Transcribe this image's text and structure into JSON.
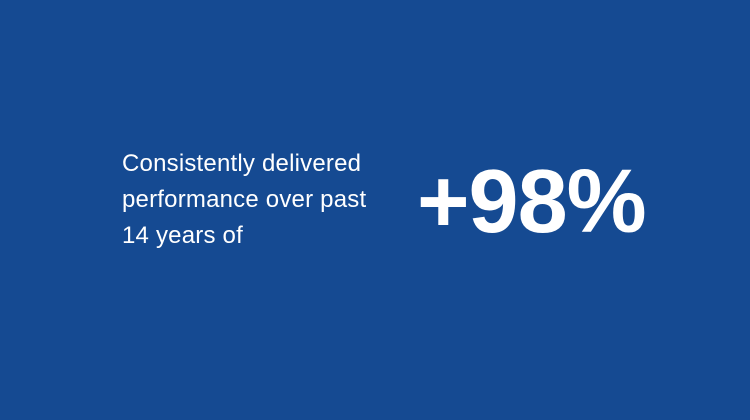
{
  "slide": {
    "description": "Consistently delivered performance over past 14 years of",
    "stat_value": "+98%"
  },
  "colors": {
    "background": "#154A92",
    "text": "#FFFFFF"
  }
}
